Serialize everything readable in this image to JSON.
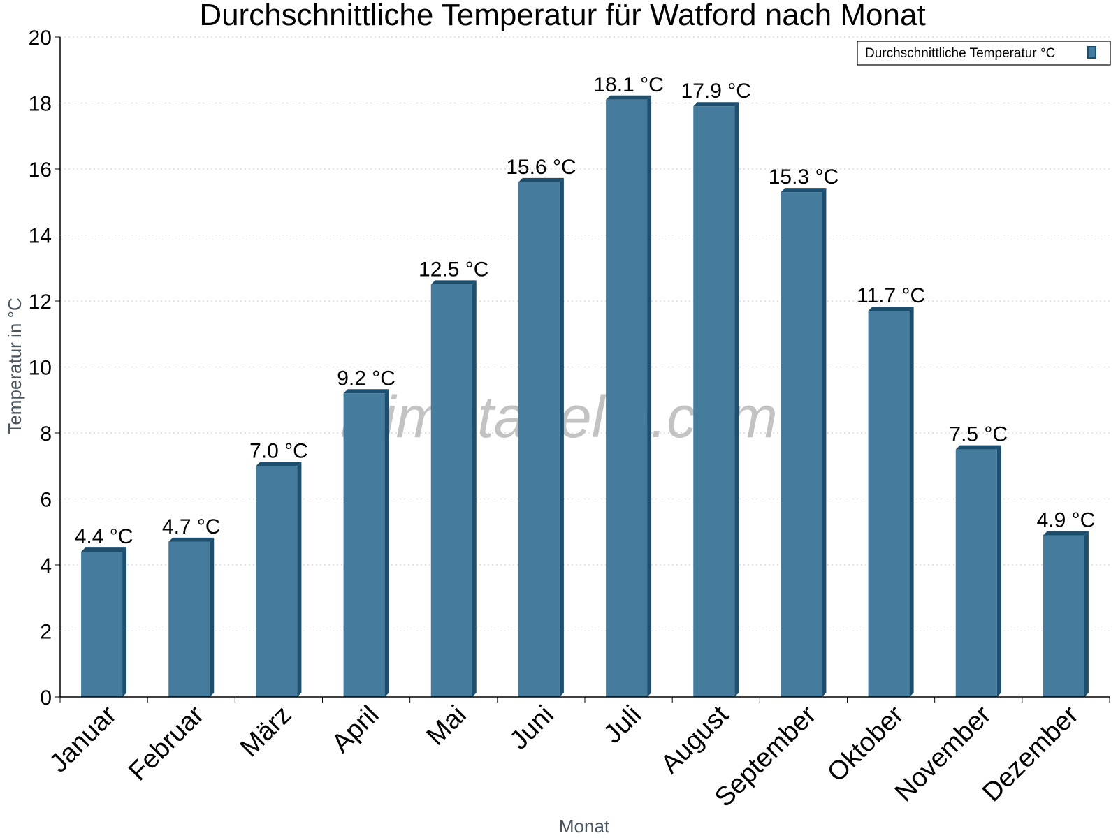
{
  "chart_data": {
    "type": "bar",
    "title": "Durchschnittliche Temperatur für Watford nach Monat",
    "xlabel": "Monat",
    "ylabel": "Temperatur in °C",
    "categories": [
      "Januar",
      "Februar",
      "März",
      "April",
      "Mai",
      "Juni",
      "Juli",
      "August",
      "September",
      "Oktober",
      "November",
      "Dezember"
    ],
    "series": [
      {
        "name": "Durchschnittliche Temperatur °C",
        "values": [
          4.4,
          4.7,
          7.0,
          9.2,
          12.5,
          15.6,
          18.1,
          17.9,
          15.3,
          11.7,
          7.5,
          4.9
        ],
        "labels": [
          "4.4 °C",
          "4.7 °C",
          "7.0 °C",
          "9.2 °C",
          "12.5 °C",
          "15.6 °C",
          "18.1 °C",
          "17.9 °C",
          "15.3 °C",
          "11.7 °C",
          "7.5 °C",
          "4.9 °C"
        ],
        "color": "#457b9d",
        "edge_color": "#1d4e6e"
      }
    ],
    "ylim": [
      0,
      20
    ],
    "yticks": [
      "0",
      "2",
      "4",
      "6",
      "8",
      "10",
      "12",
      "14",
      "16",
      "18",
      "20"
    ],
    "grid": true,
    "legend_position": "top-right",
    "watermark": "klimatabelle.com"
  }
}
